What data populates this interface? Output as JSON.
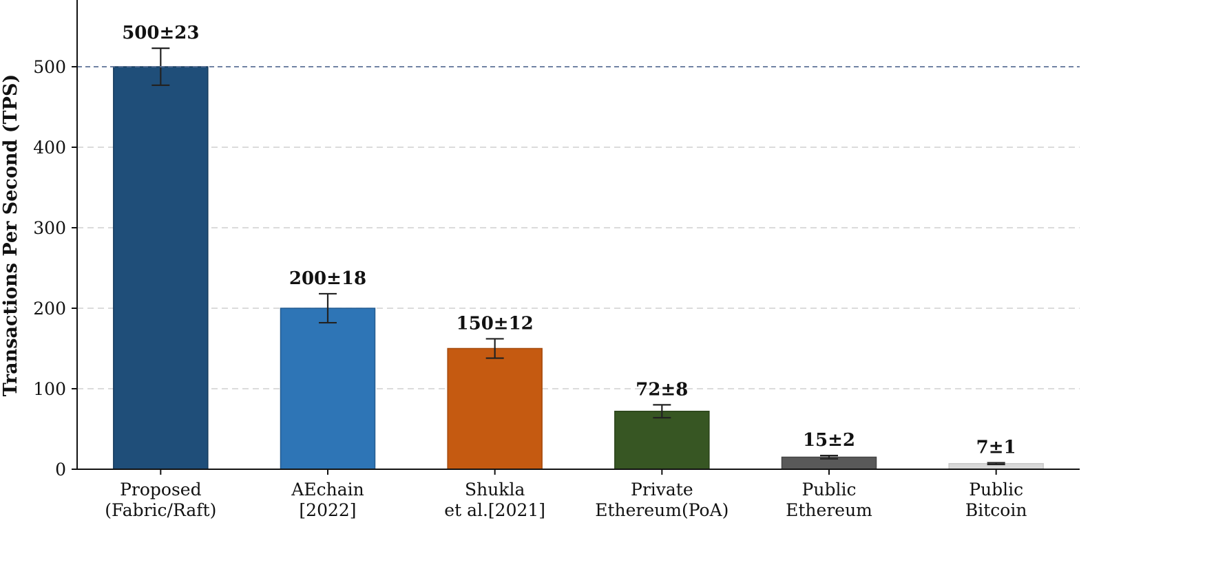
{
  "chart_data": {
    "type": "bar",
    "title": "",
    "xlabel": "",
    "ylabel": "Transactions Per Second (TPS)",
    "ylim": [
      0,
      560
    ],
    "yticks": [
      0,
      100,
      200,
      300,
      400,
      500
    ],
    "grid": "horizontal dashed",
    "reference_line": 500,
    "categories": [
      [
        "Proposed",
        "(Fabric/Raft)"
      ],
      [
        "AEchain",
        "[2022]"
      ],
      [
        "Shukla",
        "et al.[2021]"
      ],
      [
        "Private",
        "Ethereum(PoA)"
      ],
      [
        "Public",
        "Ethereum"
      ],
      [
        "Public",
        "Bitcoin"
      ]
    ],
    "values": [
      500,
      200,
      150,
      72,
      15,
      7
    ],
    "errors": [
      23,
      18,
      12,
      8,
      2,
      1
    ],
    "labels": [
      "500±23",
      "200±18",
      "150±12",
      "72±8",
      "15±2",
      "7±1"
    ],
    "colors": [
      "#1f4e79",
      "#2e75b6",
      "#c55a11",
      "#375623",
      "#595959",
      "#d9d9d9"
    ],
    "edge_colors": [
      "#163a5c",
      "#245c90",
      "#a44a0d",
      "#2a431a",
      "#444444",
      "#c8c8c8"
    ]
  }
}
